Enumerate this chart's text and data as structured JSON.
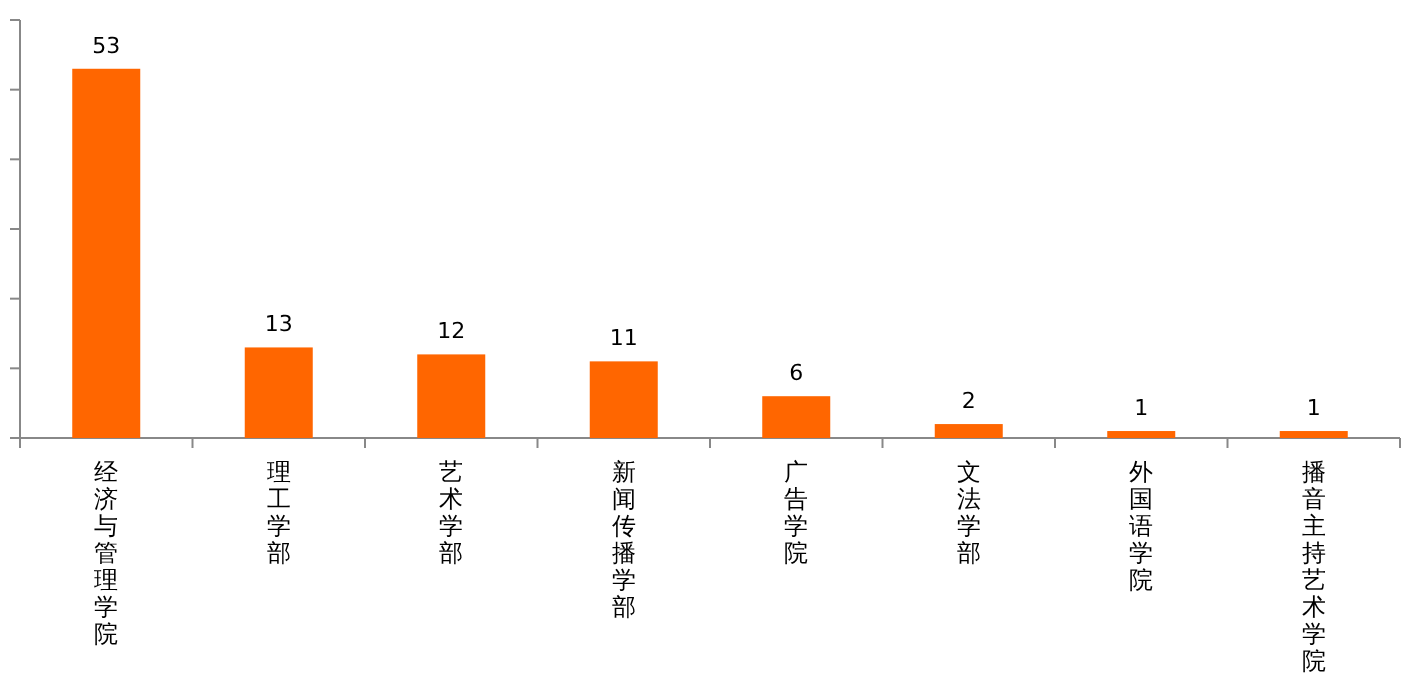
{
  "chart_data": {
    "type": "bar",
    "categories": [
      "经济与管理学院",
      "理工学部",
      "艺术学部",
      "新闻传播学部",
      "广告学院",
      "文法学部",
      "外国语学院",
      "播音主持艺术学院"
    ],
    "values": [
      53,
      13,
      12,
      11,
      6,
      2,
      1,
      1
    ],
    "color": "#ff6600",
    "ylim": [
      0,
      60
    ],
    "yticks": [
      {
        "value": 0,
        "label": null
      },
      {
        "value": 10,
        "label": null
      },
      {
        "value": 20,
        "label": null
      },
      {
        "value": 30,
        "label": null
      },
      {
        "value": 40,
        "label": null
      },
      {
        "value": 50,
        "label": null
      },
      {
        "value": 60,
        "label": null
      }
    ],
    "tick_labels": "x",
    "data_labels": true
  }
}
